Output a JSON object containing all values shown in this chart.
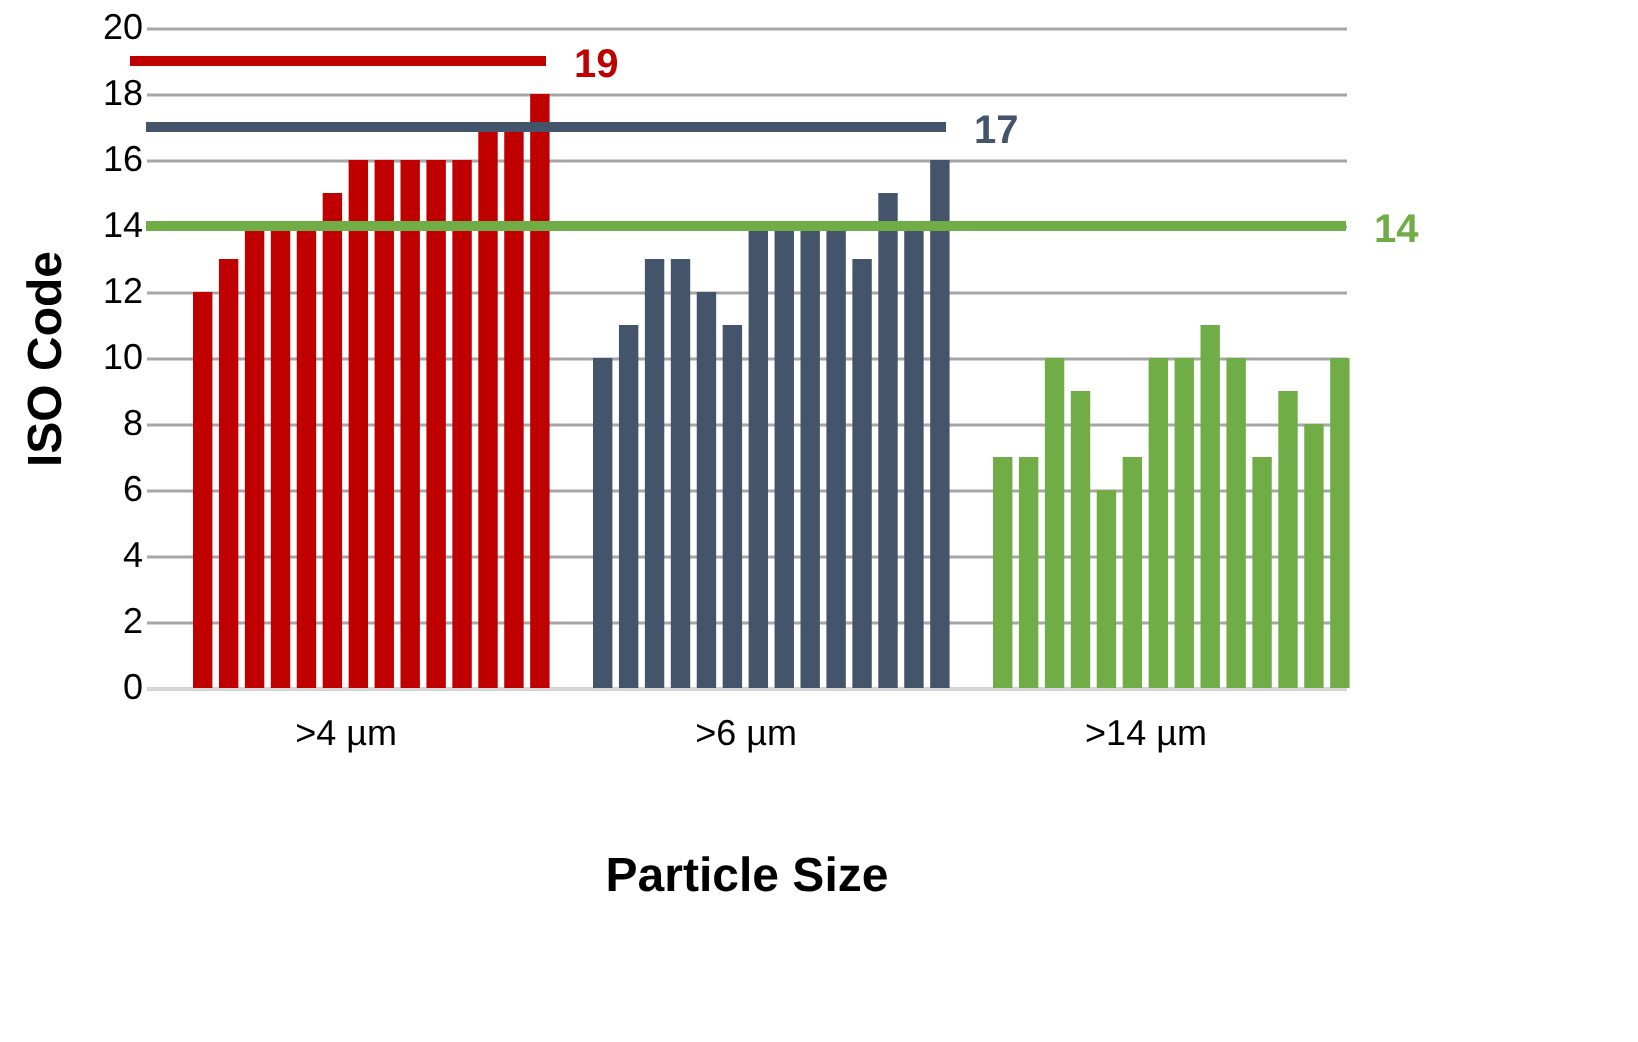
{
  "chart_data": {
    "type": "bar",
    "xlabel": "Particle Size",
    "ylabel": "ISO Code",
    "categories": [
      ">4 µm",
      ">6 µm",
      ">14 µm"
    ],
    "series": [
      {
        "colors": [
          "#c00000",
          "#44546a",
          "#70ad47"
        ],
        "values": [
          12,
          10,
          7
        ]
      },
      {
        "colors": [
          "#c00000",
          "#44546a",
          "#70ad47"
        ],
        "values": [
          13,
          11,
          7
        ]
      },
      {
        "colors": [
          "#c00000",
          "#44546a",
          "#70ad47"
        ],
        "values": [
          14,
          13,
          10
        ]
      },
      {
        "colors": [
          "#c00000",
          "#44546a",
          "#70ad47"
        ],
        "values": [
          14,
          13,
          9
        ]
      },
      {
        "colors": [
          "#c00000",
          "#44546a",
          "#70ad47"
        ],
        "values": [
          14,
          12,
          6
        ]
      },
      {
        "colors": [
          "#c00000",
          "#44546a",
          "#70ad47"
        ],
        "values": [
          15,
          11,
          7
        ]
      },
      {
        "colors": [
          "#c00000",
          "#44546a",
          "#70ad47"
        ],
        "values": [
          16,
          14,
          10
        ]
      },
      {
        "colors": [
          "#c00000",
          "#44546a",
          "#70ad47"
        ],
        "values": [
          16,
          14,
          10
        ]
      },
      {
        "colors": [
          "#c00000",
          "#44546a",
          "#70ad47"
        ],
        "values": [
          16,
          14,
          11
        ]
      },
      {
        "colors": [
          "#c00000",
          "#44546a",
          "#70ad47"
        ],
        "values": [
          16,
          14,
          10
        ]
      },
      {
        "colors": [
          "#c00000",
          "#44546a",
          "#70ad47"
        ],
        "values": [
          16,
          13,
          7
        ]
      },
      {
        "colors": [
          "#c00000",
          "#44546a",
          "#70ad47"
        ],
        "values": [
          17,
          15,
          9
        ]
      },
      {
        "colors": [
          "#c00000",
          "#44546a",
          "#70ad47"
        ],
        "values": [
          17,
          14,
          8
        ]
      },
      {
        "colors": [
          "#c00000",
          "#44546a",
          "#70ad47"
        ],
        "values": [
          18,
          16,
          10
        ]
      }
    ],
    "ylim": [
      0,
      20
    ],
    "yticks": [
      0,
      2,
      4,
      6,
      8,
      10,
      12,
      14,
      16,
      18,
      20
    ],
    "grid": "y",
    "ref_lines": [
      {
        "axis": "y",
        "value": 19,
        "label": "19",
        "color": "#c00000"
      },
      {
        "axis": "y",
        "value": 17,
        "label": "17",
        "color": "#44546a"
      },
      {
        "axis": "y",
        "value": 14,
        "label": "14",
        "color": "#70ad47"
      }
    ]
  }
}
